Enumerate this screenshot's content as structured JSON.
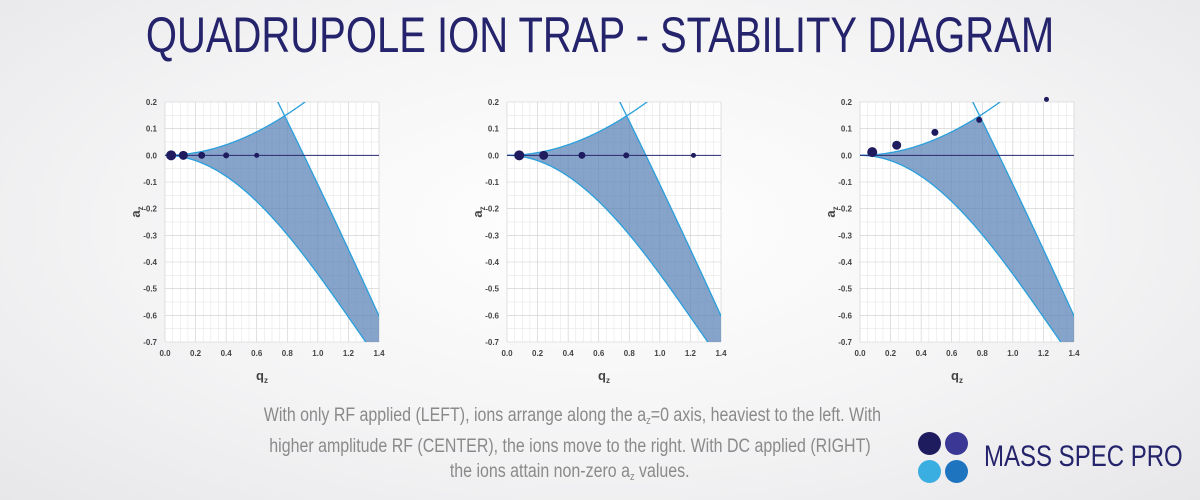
{
  "title": "QUADRUPOLE ION TRAP - STABILITY DIAGRAM",
  "caption": {
    "line1": "With only RF applied (LEFT), ions arrange along the a",
    "line1_sub": "z",
    "line1_rest": "=0 axis, heaviest to the left.  With",
    "line2": "higher amplitude RF (CENTER), the ions move to the right.  With DC applied (RIGHT)",
    "line3": "the ions attain non-zero a",
    "line3_sub": "z",
    "line3_rest": " values."
  },
  "logo": {
    "text": "MASS SPEC PRO",
    "colors": [
      "#1e1b5e",
      "#3b3795",
      "#3aaee0",
      "#1f74c0"
    ]
  },
  "colors": {
    "fill": "#5d86b8",
    "boundary": "#2a9fdc",
    "axis_line": "#2b2a72",
    "ion": "#1e1b5e",
    "grid_minor": "#e6e6e6",
    "grid_major": "#cccccc",
    "tick_label": "#444444"
  },
  "chart_data": [
    {
      "id": "left",
      "type": "scatter",
      "title": "",
      "xlabel": "q",
      "xlabel_sub": "z",
      "ylabel": "a",
      "ylabel_sub": "z",
      "xlim": [
        0,
        1.4
      ],
      "ylim": [
        -0.7,
        0.2
      ],
      "xticks": [
        "0.0",
        "0.2",
        "0.4",
        "0.6",
        "0.8",
        "1.0",
        "1.2",
        "1.4"
      ],
      "yticks": [
        "0.2",
        "0.1",
        "0.0",
        "-0.1",
        "-0.2",
        "-0.3",
        "-0.4",
        "-0.5",
        "-0.6",
        "-0.7"
      ],
      "grid": true,
      "series": [
        {
          "points": [
            {
              "q": 0.04,
              "a": 0.0,
              "r": 5
            },
            {
              "q": 0.12,
              "a": 0.0,
              "r": 4.5
            },
            {
              "q": 0.24,
              "a": 0.0,
              "r": 3.5
            },
            {
              "q": 0.4,
              "a": 0.0,
              "r": 3
            },
            {
              "q": 0.6,
              "a": 0.0,
              "r": 2.5
            }
          ]
        }
      ]
    },
    {
      "id": "center",
      "type": "scatter",
      "title": "",
      "xlabel": "q",
      "xlabel_sub": "z",
      "ylabel": "a",
      "ylabel_sub": "z",
      "xlim": [
        0,
        1.4
      ],
      "ylim": [
        -0.7,
        0.2
      ],
      "xticks": [
        "0.0",
        "0.2",
        "0.4",
        "0.6",
        "0.8",
        "1.0",
        "1.2",
        "1.4"
      ],
      "yticks": [
        "0.2",
        "0.1",
        "0.0",
        "-0.1",
        "-0.2",
        "-0.3",
        "-0.4",
        "-0.5",
        "-0.6",
        "-0.7"
      ],
      "grid": true,
      "series": [
        {
          "points": [
            {
              "q": 0.08,
              "a": 0.0,
              "r": 5
            },
            {
              "q": 0.24,
              "a": 0.0,
              "r": 4.5
            },
            {
              "q": 0.49,
              "a": 0.0,
              "r": 3.5
            },
            {
              "q": 0.78,
              "a": 0.0,
              "r": 3
            },
            {
              "q": 1.22,
              "a": 0.0,
              "r": 2.5
            }
          ]
        }
      ]
    },
    {
      "id": "right",
      "type": "scatter",
      "title": "",
      "xlabel": "q",
      "xlabel_sub": "z",
      "ylabel": "a",
      "ylabel_sub": "z",
      "xlim": [
        0,
        1.4
      ],
      "ylim": [
        -0.7,
        0.2
      ],
      "xticks": [
        "0.0",
        "0.2",
        "0.4",
        "0.6",
        "0.8",
        "1.0",
        "1.2",
        "1.4"
      ],
      "yticks": [
        "0.2",
        "0.1",
        "0.0",
        "-0.1",
        "-0.2",
        "-0.3",
        "-0.4",
        "-0.5",
        "-0.6",
        "-0.7"
      ],
      "grid": true,
      "series": [
        {
          "points": [
            {
              "q": 0.08,
              "a": 0.012,
              "r": 5
            },
            {
              "q": 0.24,
              "a": 0.038,
              "r": 4.5
            },
            {
              "q": 0.49,
              "a": 0.086,
              "r": 3.5
            },
            {
              "q": 0.78,
              "a": 0.133,
              "r": 3
            },
            {
              "q": 1.22,
              "a": 0.21,
              "r": 2.5
            }
          ]
        }
      ]
    }
  ]
}
